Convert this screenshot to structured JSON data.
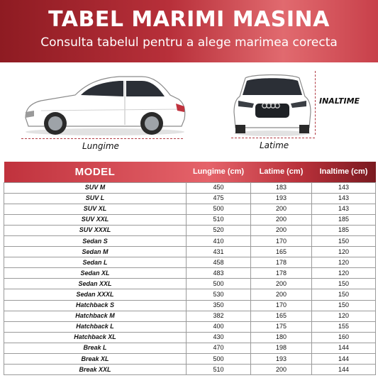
{
  "header": {
    "title": "TABEL MARIMI MASINA",
    "subtitle": "Consulta tabelul pentru a alege marimea corecta"
  },
  "labels": {
    "length": "Lungime",
    "width": "Latime",
    "height": "INALTIME"
  },
  "table": {
    "columns": [
      "MODEL",
      "Lungime (cm)",
      "Latime (cm)",
      "Inaltime (cm)"
    ],
    "rows": [
      [
        "SUV M",
        "450",
        "183",
        "143"
      ],
      [
        "SUV L",
        "475",
        "193",
        "143"
      ],
      [
        "SUV XL",
        "500",
        "200",
        "143"
      ],
      [
        "SUV XXL",
        "510",
        "200",
        "185"
      ],
      [
        "SUV XXXL",
        "520",
        "200",
        "185"
      ],
      [
        "Sedan S",
        "410",
        "170",
        "150"
      ],
      [
        "Sedan M",
        "431",
        "165",
        "120"
      ],
      [
        "Sedan L",
        "458",
        "178",
        "120"
      ],
      [
        "Sedan XL",
        "483",
        "178",
        "120"
      ],
      [
        "Sedan XXL",
        "500",
        "200",
        "150"
      ],
      [
        "Sedan XXXL",
        "530",
        "200",
        "150"
      ],
      [
        "Hatchback S",
        "350",
        "170",
        "150"
      ],
      [
        "Hatchback M",
        "382",
        "165",
        "120"
      ],
      [
        "Hatchback L",
        "400",
        "175",
        "155"
      ],
      [
        "Hatchback XL",
        "430",
        "180",
        "160"
      ],
      [
        "Break L",
        "470",
        "198",
        "144"
      ],
      [
        "Break XL",
        "500",
        "193",
        "144"
      ],
      [
        "Break XXL",
        "510",
        "200",
        "144"
      ]
    ]
  },
  "colors": {
    "accent": "#b8303a",
    "accent_light": "#e5636a"
  }
}
